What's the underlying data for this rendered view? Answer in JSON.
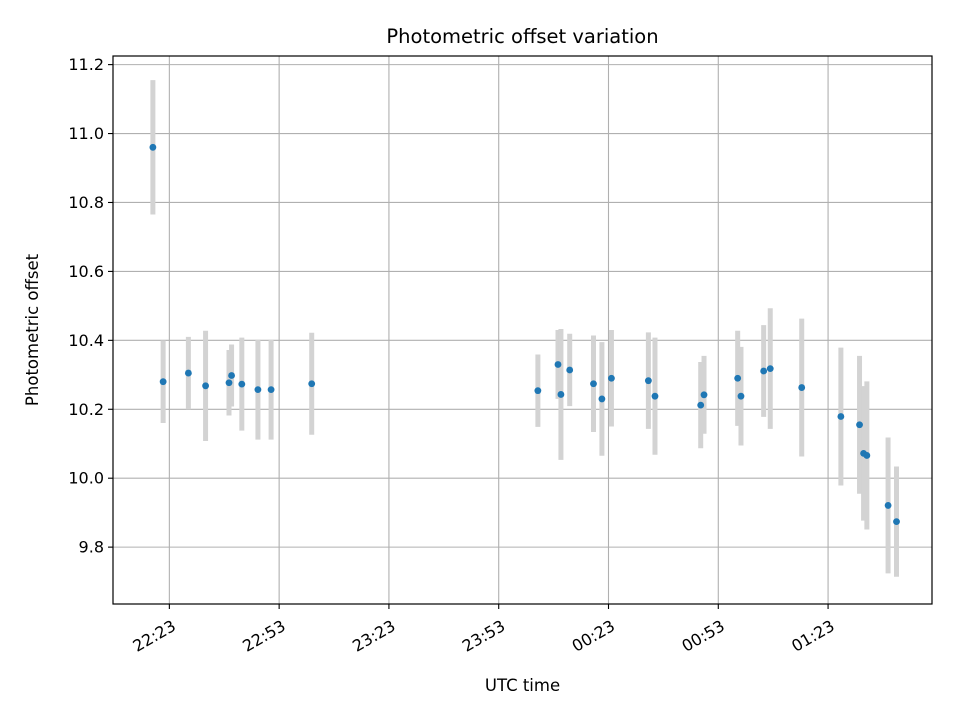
{
  "chart_data": {
    "type": "scatter",
    "title": "Photometric offset variation",
    "xlabel": "UTC time",
    "ylabel": "Photometric offset",
    "x_ticks": [
      "22:23",
      "22:53",
      "23:23",
      "23:53",
      "00:23",
      "00:53",
      "01:23"
    ],
    "x_tick_minutes": [
      1343,
      1373,
      1403,
      1433,
      1463,
      1493,
      1523
    ],
    "xlim_minutes": [
      1327.6,
      1551.4
    ],
    "y_ticks": [
      "9.8",
      "10.0",
      "10.2",
      "10.4",
      "10.6",
      "10.8",
      "11.0",
      "11.2"
    ],
    "y_tick_values": [
      9.8,
      10.0,
      10.2,
      10.4,
      10.6,
      10.8,
      11.0,
      11.2
    ],
    "ylim": [
      9.635,
      11.225
    ],
    "grid": true,
    "colors": {
      "point": "#1f77b4",
      "errorbar": "#d3d3d3",
      "grid": "#b0b0b0",
      "axes": "#000000"
    },
    "series": [
      {
        "x_minutes": [
          1338.5,
          1341.3,
          1348.2,
          1352.9,
          1359.3,
          1360.0,
          1362.8,
          1367.2,
          1370.8,
          1381.9,
          1443.7,
          1449.2,
          1450.0,
          1452.4,
          1458.9,
          1461.2,
          1463.8,
          1473.9,
          1475.7,
          1488.2,
          1489.1,
          1498.3,
          1499.2,
          1505.4,
          1507.2,
          1515.8,
          1526.5,
          1531.6,
          1532.7,
          1533.6,
          1539.4,
          1541.7
        ],
        "y": [
          10.96,
          10.28,
          10.305,
          10.268,
          10.277,
          10.298,
          10.273,
          10.257,
          10.257,
          10.274,
          10.254,
          10.33,
          10.243,
          10.314,
          10.274,
          10.23,
          10.29,
          10.283,
          10.238,
          10.212,
          10.242,
          10.29,
          10.238,
          10.311,
          10.318,
          10.263,
          10.179,
          10.155,
          10.072,
          10.066,
          9.921,
          9.874
        ],
        "yerr": [
          0.195,
          0.12,
          0.105,
          0.16,
          0.095,
          0.09,
          0.135,
          0.145,
          0.145,
          0.148,
          0.105,
          0.1,
          0.19,
          0.105,
          0.14,
          0.165,
          0.14,
          0.14,
          0.17,
          0.125,
          0.113,
          0.138,
          0.143,
          0.133,
          0.175,
          0.2,
          0.2,
          0.2,
          0.195,
          0.215,
          0.197,
          0.16
        ]
      }
    ]
  }
}
